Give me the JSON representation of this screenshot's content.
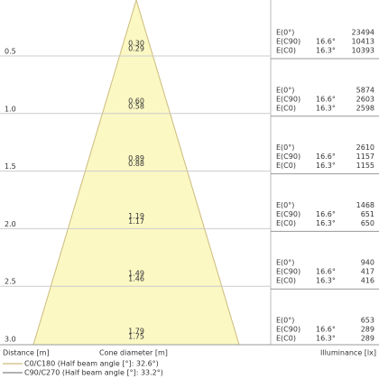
{
  "labels": {
    "e0": "E(0°)",
    "ec90": "E(C90)",
    "ec0": "E(C0)",
    "a90": "16.6°",
    "a0": "16.3°"
  },
  "rows": [
    {
      "distance": "0.5",
      "d1": "0.30",
      "d2": "0.29",
      "e0": "23494",
      "ec90": "10413",
      "ec0": "10393"
    },
    {
      "distance": "1.0",
      "d1": "0.60",
      "d2": "0.58",
      "e0": "5874",
      "ec90": "2603",
      "ec0": "2598"
    },
    {
      "distance": "1.5",
      "d1": "0.89",
      "d2": "0.88",
      "e0": "2610",
      "ec90": "1157",
      "ec0": "1155"
    },
    {
      "distance": "2.0",
      "d1": "1.19",
      "d2": "1.17",
      "e0": "1468",
      "ec90": "651",
      "ec0": "650"
    },
    {
      "distance": "2.5",
      "d1": "1.49",
      "d2": "1.46",
      "e0": "940",
      "ec90": "417",
      "ec0": "416"
    },
    {
      "distance": "3.0",
      "d1": "1.79",
      "d2": "1.75",
      "e0": "653",
      "ec90": "289",
      "ec0": "289"
    }
  ],
  "footer": {
    "distance": "Distance [m]",
    "cone": "Cone diameter [m]",
    "illuminance": "Illuminance [lx]"
  },
  "legend": [
    "C0/C180 (Half beam angle [°]: 32.6°)",
    "C90/C270 (Half beam angle [°]: 33.2°)"
  ]
}
